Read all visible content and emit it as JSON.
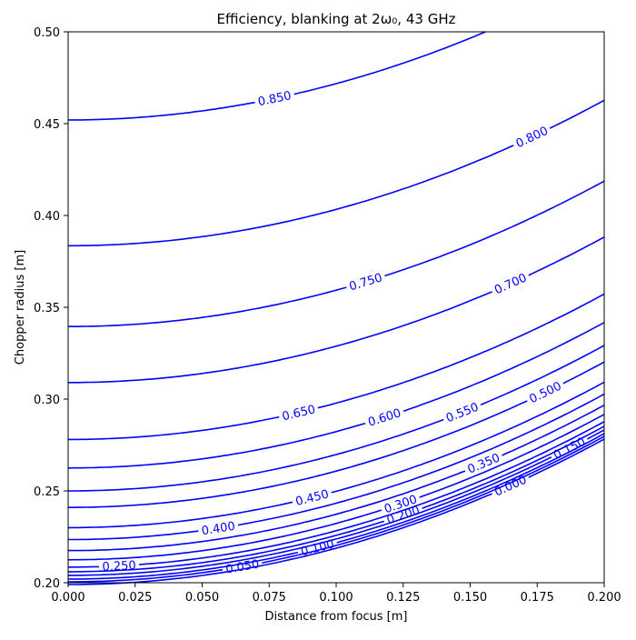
{
  "chart_data": {
    "type": "contour",
    "title": "Efficiency, blanking at 2ω₀, 43 GHz",
    "xlabel": "Distance from focus [m]",
    "ylabel": "Chopper radius [m]",
    "xlim": [
      0.0,
      0.2
    ],
    "ylim": [
      0.2,
      0.5
    ],
    "xticks": [
      0.0,
      0.025,
      0.05,
      0.075,
      0.1,
      0.125,
      0.15,
      0.175,
      0.2
    ],
    "xtick_labels": [
      "0.000",
      "0.025",
      "0.050",
      "0.075",
      "0.100",
      "0.125",
      "0.150",
      "0.175",
      "0.200"
    ],
    "yticks": [
      0.2,
      0.25,
      0.3,
      0.35,
      0.4,
      0.45,
      0.5
    ],
    "ytick_labels": [
      "0.20",
      "0.25",
      "0.30",
      "0.35",
      "0.40",
      "0.45",
      "0.50"
    ],
    "grid": false,
    "line_color": "#0000ff",
    "label_color": "#0000ff",
    "levels": [
      {
        "level": 0.0,
        "label": "0.000",
        "r0": 0.199,
        "growth": 1.98,
        "label_x": 0.165
      },
      {
        "level": 0.05,
        "label": "0.050",
        "r0": 0.2005,
        "growth": 1.98,
        "label_x": 0.065
      },
      {
        "level": 0.1,
        "label": "0.100",
        "r0": 0.202,
        "growth": 1.98,
        "label_x": 0.093
      },
      {
        "level": 0.15,
        "label": "0.150",
        "r0": 0.204,
        "growth": 1.98,
        "label_x": 0.187
      },
      {
        "level": 0.2,
        "label": "0.200",
        "r0": 0.206,
        "growth": 1.98,
        "label_x": 0.125
      },
      {
        "level": 0.25,
        "label": "0.250",
        "r0": 0.2085,
        "growth": 1.98,
        "label_x": 0.019
      },
      {
        "level": 0.3,
        "label": "0.300",
        "r0": 0.2125,
        "growth": 1.98,
        "label_x": 0.124
      },
      {
        "level": 0.35,
        "label": "0.350",
        "r0": 0.2175,
        "growth": 1.98,
        "label_x": 0.155
      },
      {
        "level": 0.4,
        "label": "0.400",
        "r0": 0.2235,
        "growth": 1.98,
        "label_x": 0.056
      },
      {
        "level": 0.45,
        "label": "0.450",
        "r0": 0.23,
        "growth": 1.98,
        "label_x": 0.091
      },
      {
        "level": 0.5,
        "label": "0.500",
        "r0": 0.241,
        "growth": 1.98,
        "label_x": 0.178
      },
      {
        "level": 0.55,
        "label": "0.550",
        "r0": 0.25,
        "growth": 1.98,
        "label_x": 0.147
      },
      {
        "level": 0.6,
        "label": "0.600",
        "r0": 0.2625,
        "growth": 1.98,
        "label_x": 0.118
      },
      {
        "level": 0.65,
        "label": "0.650",
        "r0": 0.278,
        "growth": 1.98,
        "label_x": 0.086
      },
      {
        "level": 0.7,
        "label": "0.700",
        "r0": 0.309,
        "growth": 1.98,
        "label_x": 0.165
      },
      {
        "level": 0.75,
        "label": "0.750",
        "r0": 0.3395,
        "growth": 1.98,
        "label_x": 0.111
      },
      {
        "level": 0.8,
        "label": "0.800",
        "r0": 0.3835,
        "growth": 1.98,
        "label_x": 0.173
      },
      {
        "level": 0.85,
        "label": "0.850",
        "r0": 0.452,
        "growth": 1.98,
        "label_x": 0.077
      }
    ]
  }
}
